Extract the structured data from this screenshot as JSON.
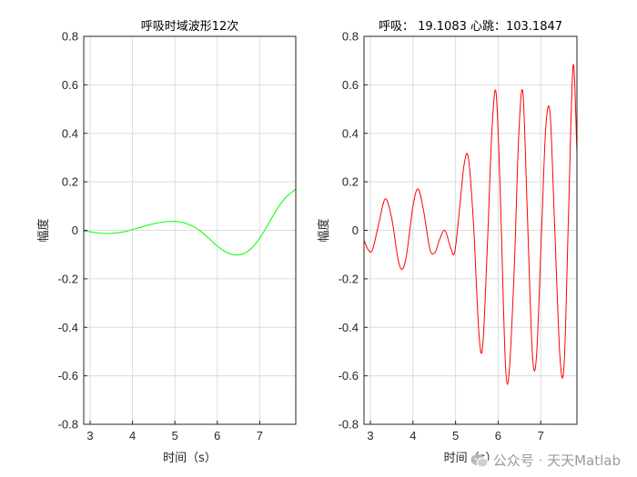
{
  "chart_data": [
    {
      "type": "line",
      "title": "呼吸时域波形12次",
      "xlabel": "时间（s）",
      "ylabel": "幅度",
      "xlim": [
        2.85,
        7.85
      ],
      "ylim": [
        -0.8,
        0.8
      ],
      "xticks": [
        3,
        4,
        5,
        6,
        7
      ],
      "yticks": [
        -0.8,
        -0.6,
        -0.4,
        -0.2,
        0,
        0.2,
        0.4,
        0.6,
        0.8
      ],
      "grid": true,
      "color": "#00ff00",
      "series": [
        {
          "x": [
            2.85,
            3.0,
            3.2,
            3.4,
            3.6,
            3.8,
            4.0,
            4.2,
            4.4,
            4.6,
            4.8,
            5.0,
            5.2,
            5.4,
            5.6,
            5.8,
            6.0,
            6.2,
            6.4,
            6.6,
            6.8,
            7.0,
            7.2,
            7.4,
            7.6,
            7.85
          ],
          "y": [
            -0.002,
            -0.006,
            -0.011,
            -0.013,
            -0.011,
            -0.006,
            0.003,
            0.013,
            0.023,
            0.031,
            0.036,
            0.037,
            0.032,
            0.019,
            -0.003,
            -0.033,
            -0.065,
            -0.089,
            -0.101,
            -0.098,
            -0.075,
            -0.032,
            0.025,
            0.085,
            0.133,
            0.17
          ]
        }
      ]
    },
    {
      "type": "line",
      "title": "呼吸： 19.1083  心跳：103.1847",
      "xlabel": "时间（s）",
      "ylabel": "幅度",
      "xlim": [
        2.85,
        7.85
      ],
      "ylim": [
        -0.8,
        0.8
      ],
      "xticks": [
        3,
        4,
        5,
        6,
        7
      ],
      "yticks": [
        -0.8,
        -0.6,
        -0.4,
        -0.2,
        0,
        0.2,
        0.4,
        0.6,
        0.8
      ],
      "grid": true,
      "color": "#ff0000",
      "series": [
        {
          "x": [
            2.85,
            2.95,
            3.05,
            3.2,
            3.35,
            3.5,
            3.65,
            3.75,
            3.85,
            4.0,
            4.12,
            4.25,
            4.4,
            4.52,
            4.62,
            4.75,
            4.88,
            4.98,
            5.1,
            5.2,
            5.3,
            5.42,
            5.55,
            5.64,
            5.75,
            5.85,
            5.95,
            6.05,
            6.17,
            6.26,
            6.38,
            6.48,
            6.58,
            6.68,
            6.8,
            6.9,
            7.02,
            7.12,
            7.22,
            7.32,
            7.45,
            7.55,
            7.65,
            7.76,
            7.85
          ],
          "y": [
            -0.04,
            -0.08,
            -0.08,
            0.03,
            0.13,
            0.05,
            -0.12,
            -0.16,
            -0.1,
            0.1,
            0.17,
            0.08,
            -0.08,
            -0.09,
            -0.04,
            0.0,
            -0.07,
            -0.09,
            0.1,
            0.27,
            0.3,
            0.03,
            -0.43,
            -0.47,
            -0.05,
            0.4,
            0.57,
            0.15,
            -0.55,
            -0.58,
            -0.15,
            0.38,
            0.57,
            0.1,
            -0.5,
            -0.52,
            0.0,
            0.43,
            0.48,
            0.05,
            -0.52,
            -0.55,
            0.05,
            0.68,
            0.32
          ]
        }
      ]
    }
  ],
  "watermark": {
    "text": "公众号 · 天天Matlab",
    "icon": "wechat-icon"
  }
}
